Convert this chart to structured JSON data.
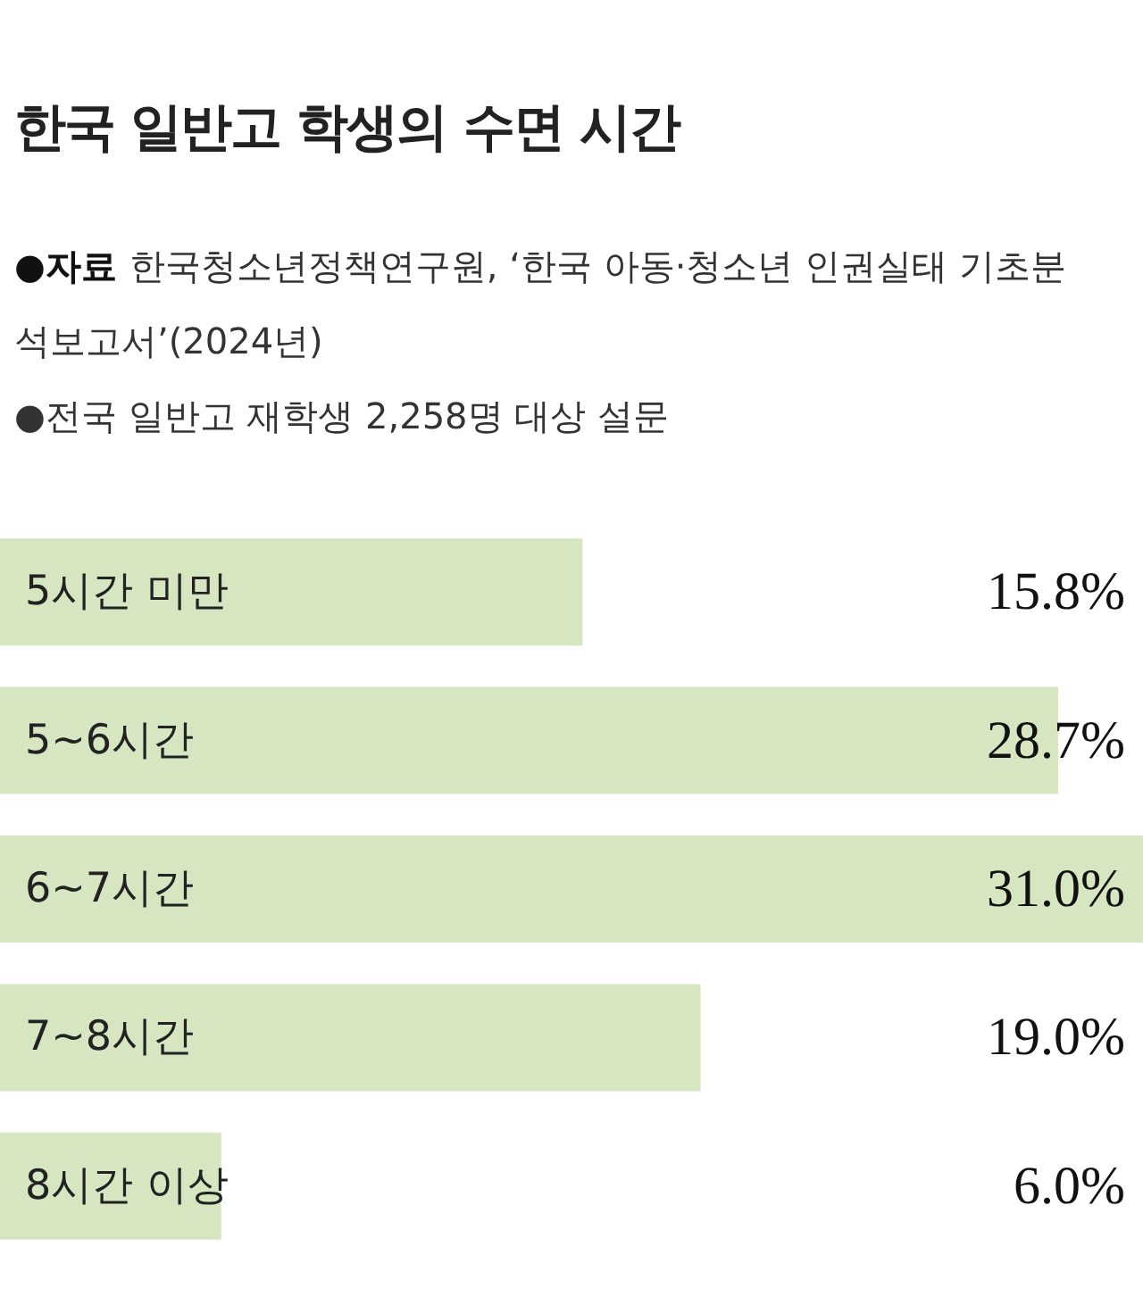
{
  "chart_data": {
    "type": "bar",
    "orientation": "horizontal",
    "title": "한국 일반고 학생의 수면 시간",
    "annotations": [
      "●자료 한국청소년정책연구원, ‘한국 아동·청소년 인권실태 기초분석보고서’(2024년)",
      "●전국 일반고 재학생 2,258명 대상 설문"
    ],
    "categories": [
      "5시간 미만",
      "5~6시간",
      "6~7시간",
      "7~8시간",
      "8시간 이상"
    ],
    "values": [
      15.8,
      28.7,
      31.0,
      19.0,
      6.0
    ],
    "value_labels": [
      "15.8%",
      "28.7%",
      "31.0%",
      "19.0%",
      "6.0%"
    ],
    "color": "#d5e6c1"
  }
}
